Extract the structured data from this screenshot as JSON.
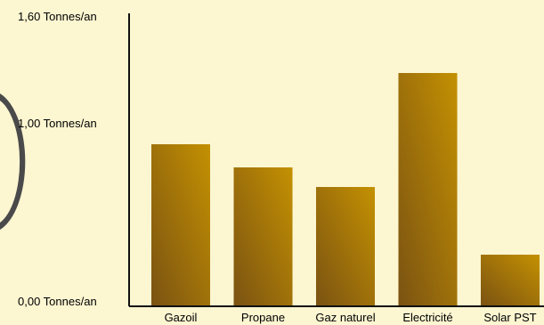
{
  "chart_data": {
    "type": "bar",
    "title": "",
    "xlabel": "",
    "ylabel": "",
    "categories": [
      "Gazoil",
      "Propane",
      "Gaz naturel",
      "Electricité",
      "Solar PST"
    ],
    "values": [
      0.91,
      0.78,
      0.67,
      1.31,
      0.29
    ],
    "ylim": [
      0,
      1.6
    ],
    "y_ticks": [
      {
        "value": 0.0,
        "label": "0,00 Tonnes/an"
      },
      {
        "value": 1.0,
        "label": "1,00 Tonnes/an"
      },
      {
        "value": 1.6,
        "label": "1,60 Tonnes/an"
      }
    ],
    "grid": false,
    "legend": "none",
    "colors": {
      "background": "#fcf6d1",
      "bar_dark": "#7a5212",
      "bar_light": "#c49102",
      "axis": "#111111",
      "decoration": "#4a4a4a"
    }
  }
}
